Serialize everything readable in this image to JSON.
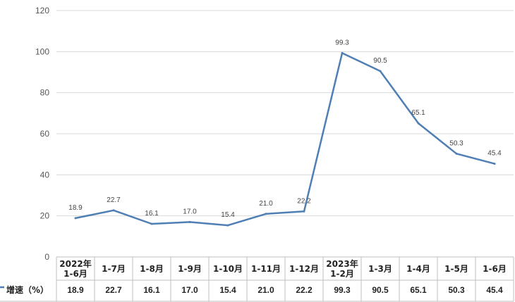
{
  "chart_data": {
    "type": "line",
    "categories": [
      [
        "2022年",
        "1-6月"
      ],
      [
        "1-7月"
      ],
      [
        "1-8月"
      ],
      [
        "1-9月"
      ],
      [
        "1-10月"
      ],
      [
        "1-11月"
      ],
      [
        "1-12月"
      ],
      [
        "2023年",
        "1-2月"
      ],
      [
        "1-3月"
      ],
      [
        "1-4月"
      ],
      [
        "1-5月"
      ],
      [
        "1-6月"
      ]
    ],
    "series": [
      {
        "name": "增速（%）",
        "values": [
          18.9,
          22.7,
          16.1,
          17.0,
          15.4,
          21.0,
          22.2,
          99.3,
          90.5,
          65.1,
          50.3,
          45.4
        ],
        "labels": [
          "18.9",
          "22.7",
          "16.1",
          "17.0",
          "15.4",
          "21.0",
          "22.2",
          "99.3",
          "90.5",
          "65.1",
          "50.3",
          "45.4"
        ]
      }
    ],
    "ylim": [
      0,
      120
    ],
    "yticks": [
      0,
      20,
      40,
      60,
      80,
      100,
      120
    ],
    "grid": true,
    "data_table": true,
    "colors": {
      "line": "#4f7fb4",
      "grid": "#d9d9d9",
      "table_border": "#bfbfbf"
    }
  }
}
